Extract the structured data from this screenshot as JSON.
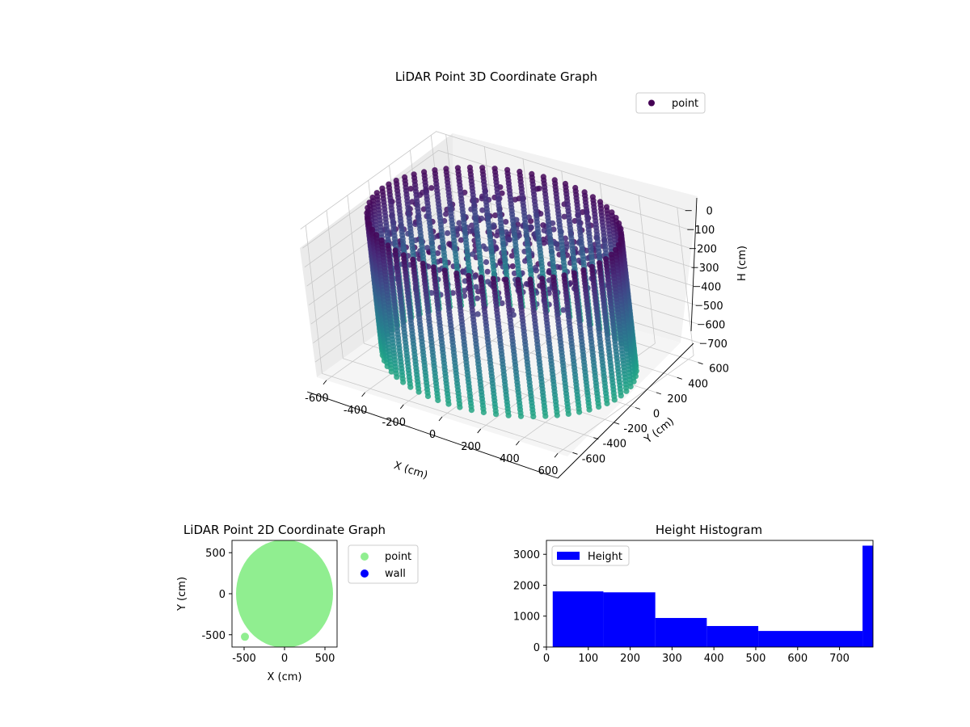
{
  "chart_data": [
    {
      "type": "scatter",
      "projection": "3d",
      "title": "LiDAR Point 3D Coordinate Graph",
      "xlabel": "X (cm)",
      "ylabel": "Y (cm)",
      "zlabel": "H (cm)",
      "xticks": [
        -600,
        -400,
        -200,
        0,
        200,
        400,
        600
      ],
      "yticks": [
        -600,
        -400,
        -200,
        0,
        200,
        400,
        600
      ],
      "zticks": [
        0,
        100,
        200,
        300,
        400,
        500,
        600,
        700
      ],
      "xlim": [
        -650,
        650
      ],
      "ylim": [
        -650,
        650
      ],
      "zlim": [
        0,
        780
      ],
      "z_inverted": true,
      "grid": true,
      "legend": {
        "position": "top-right",
        "entries": [
          "point"
        ]
      },
      "series": [
        {
          "name": "point",
          "colormap": "viridis",
          "color_by": "height",
          "shape": "cylinder",
          "radius": 580,
          "height_range": [
            0,
            780
          ],
          "columns": 64
        }
      ],
      "colors": {
        "point_legend": "#440154"
      }
    },
    {
      "type": "scatter",
      "title": "LiDAR Point 2D Coordinate Graph",
      "xlabel": "X (cm)",
      "ylabel": "Y (cm)",
      "xticks": [
        -500,
        0,
        500
      ],
      "yticks": [
        500,
        0,
        -500
      ],
      "xlim": [
        -650,
        650
      ],
      "ylim": [
        -650,
        650
      ],
      "legend": {
        "position": "outside-right",
        "entries": [
          "point",
          "wall"
        ]
      },
      "series": [
        {
          "name": "point",
          "color": "#90ee90",
          "shape": "disk",
          "radius": 600
        },
        {
          "name": "wall",
          "color": "#0000ff"
        }
      ]
    },
    {
      "type": "bar",
      "subtype": "histogram",
      "title": "Height Histogram",
      "xticks": [
        0,
        100,
        200,
        300,
        400,
        500,
        600,
        700
      ],
      "yticks": [
        0,
        1000,
        2000,
        3000
      ],
      "xlim": [
        0,
        780
      ],
      "ylim": [
        0,
        3450
      ],
      "legend": {
        "position": "top-left",
        "entries": [
          "Height"
        ]
      },
      "bins": [
        {
          "x0": 15,
          "x1": 136,
          "count": 1800
        },
        {
          "x0": 136,
          "x1": 260,
          "count": 1770
        },
        {
          "x0": 260,
          "x1": 383,
          "count": 940
        },
        {
          "x0": 383,
          "x1": 506,
          "count": 680
        },
        {
          "x0": 506,
          "x1": 755,
          "count": 520
        },
        {
          "x0": 755,
          "x1": 780,
          "count": 3280
        }
      ],
      "series": [
        {
          "name": "Height",
          "color": "#0000ff"
        }
      ]
    }
  ]
}
